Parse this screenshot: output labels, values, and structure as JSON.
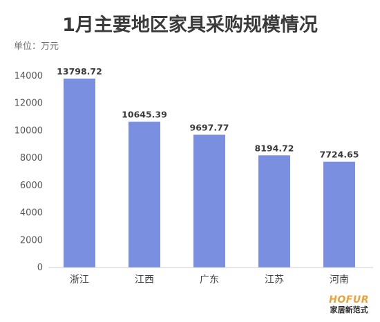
{
  "chart_data": {
    "type": "bar",
    "title": "1月主要地区家具采购规模情况",
    "unit_label": "单位：万元",
    "categories": [
      "浙江",
      "江西",
      "广东",
      "江苏",
      "河南"
    ],
    "values": [
      13798.72,
      10645.39,
      9697.77,
      8194.72,
      7724.65
    ],
    "value_labels": [
      "13798.72",
      "10645.39",
      "9697.77",
      "8194.72",
      "7724.65"
    ],
    "ylim": [
      0,
      14000
    ],
    "yticks": [
      0,
      2000,
      4000,
      6000,
      8000,
      10000,
      12000,
      14000
    ],
    "grid": false,
    "bar_color": "#7b8fe0"
  },
  "watermark": {
    "brand": "HOFUR",
    "brand_cn": "家居新范式",
    "brand_color": "#e8a33a"
  }
}
